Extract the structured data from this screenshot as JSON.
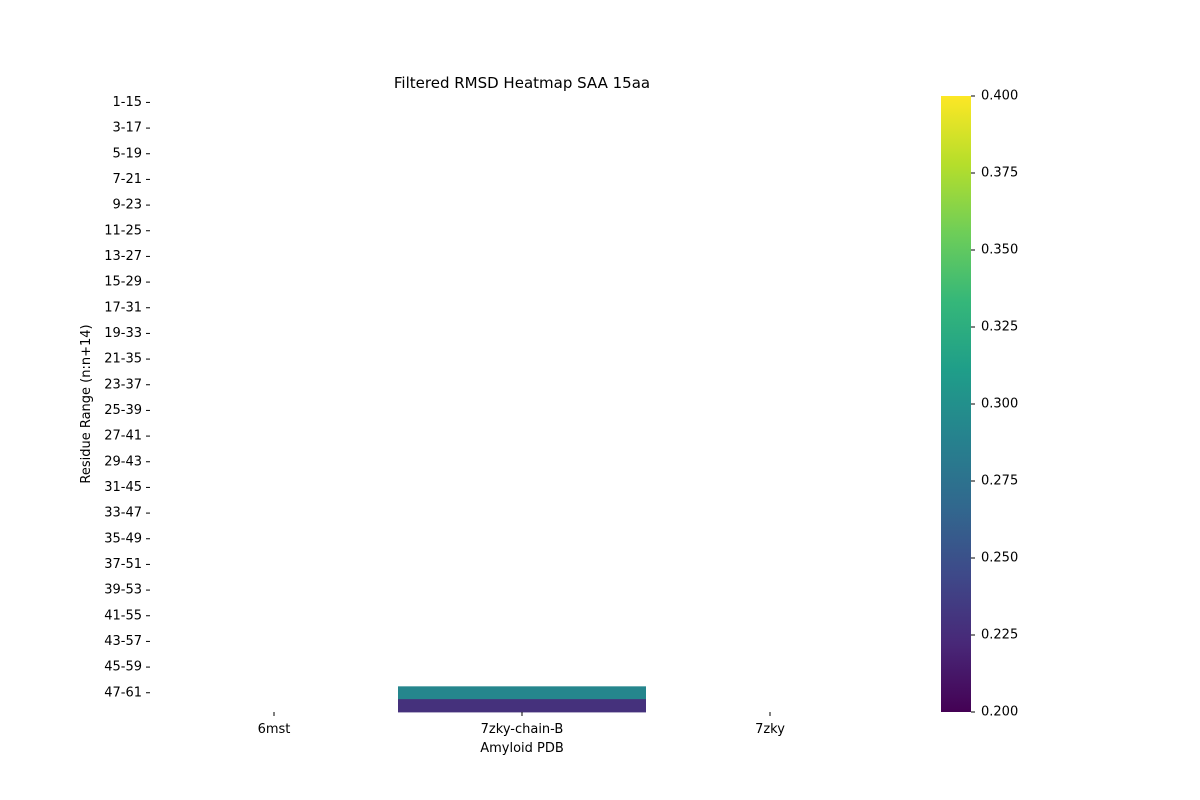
{
  "chart_data": {
    "type": "heatmap",
    "title": "Filtered RMSD Heatmap SAA 15aa",
    "xlabel": "Amyloid PDB",
    "ylabel": "Residue Range (n:n+14)",
    "x_categories": [
      "6mst",
      "7zky-chain-B",
      "7zky"
    ],
    "y_tick_labels": [
      "1-15",
      "3-17",
      "5-19",
      "7-21",
      "9-23",
      "11-25",
      "13-27",
      "15-29",
      "17-31",
      "19-33",
      "21-35",
      "23-37",
      "25-39",
      "27-41",
      "29-43",
      "31-45",
      "33-47",
      "35-49",
      "37-51",
      "39-53",
      "41-55",
      "43-57",
      "45-59",
      "47-61"
    ],
    "n_rows": 48,
    "cells": [
      {
        "row": 46,
        "col": 1,
        "value": 0.292
      },
      {
        "row": 47,
        "col": 1,
        "value": 0.228
      }
    ],
    "colorbar": {
      "colormap": "viridis",
      "vmin": 0.2,
      "vmax": 0.4,
      "ticks": [
        "0.200",
        "0.225",
        "0.250",
        "0.275",
        "0.300",
        "0.325",
        "0.350",
        "0.375",
        "0.400"
      ]
    },
    "grid": false
  }
}
